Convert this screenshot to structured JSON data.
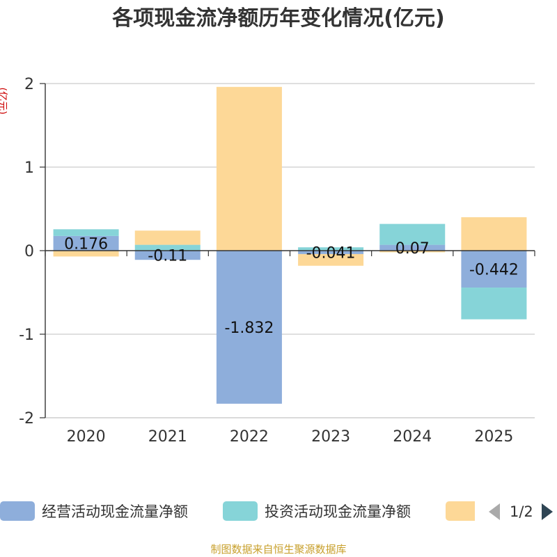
{
  "chart_data": {
    "type": "bar",
    "stacked": true,
    "title": "各项现金流净额历年变化情况(亿元)",
    "ylabel": "(亿元)",
    "categories": [
      "2020",
      "2021",
      "2022",
      "2023",
      "2024",
      "2025"
    ],
    "ylim": [
      -2,
      2
    ],
    "yticks": [
      2,
      1,
      0,
      -1,
      -2
    ],
    "grid": true,
    "series": [
      {
        "name": "经营活动现金流量净额",
        "color": "#8eaedb",
        "values": [
          0.176,
          -0.11,
          -1.832,
          -0.041,
          0.07,
          -0.442
        ]
      },
      {
        "name": "投资活动现金流量净额",
        "color": "#86d4d8",
        "values": [
          0.08,
          0.07,
          0,
          0.04,
          0.25,
          -0.38
        ]
      },
      {
        "name": "",
        "color": "#fdd897",
        "values": [
          -0.07,
          0.17,
          1.96,
          -0.14,
          -0.02,
          0.4
        ]
      }
    ],
    "data_labels": [
      "0.176",
      "-0.11",
      "-1.832",
      "-0.041",
      "0.07",
      "-0.442"
    ],
    "legend_position": "bottom"
  },
  "legend": {
    "items": [
      {
        "label": "经营活动现金流量净额",
        "color": "#8eaedb"
      },
      {
        "label": "投资活动现金流量净额",
        "color": "#86d4d8"
      },
      {
        "label": "",
        "color": "#fdd897"
      }
    ],
    "page_indicator": "1/2"
  },
  "footer": "制图数据来自恒生聚源数据库"
}
